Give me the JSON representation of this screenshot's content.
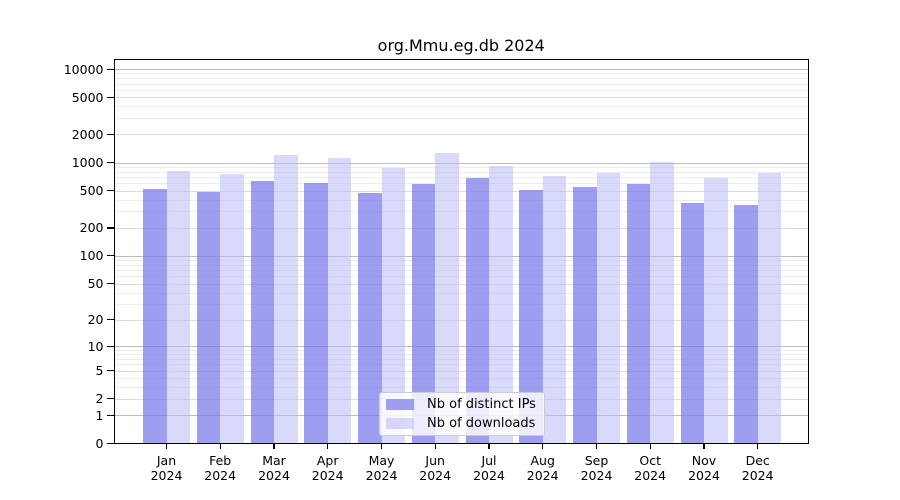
{
  "title": "org.Mmu.eg.db 2024",
  "chart_data": {
    "type": "bar",
    "title": "org.Mmu.eg.db 2024",
    "categories": [
      "Jan",
      "Feb",
      "Mar",
      "Apr",
      "May",
      "Jun",
      "Jul",
      "Aug",
      "Sep",
      "Oct",
      "Nov",
      "Dec"
    ],
    "x_year_label": "2024",
    "series": [
      {
        "name": "Nb of distinct IPs",
        "key": "distinct-ips",
        "color_hex": "#a3a3f1",
        "css_color": "rgba(120,120,235,0.72)",
        "values": [
          520,
          483,
          632,
          601,
          478,
          587,
          681,
          510,
          555,
          589,
          368,
          353
        ]
      },
      {
        "name": "Nb of downloads",
        "key": "downloads",
        "color_hex": "#d9d9fa",
        "css_color": "rgba(185,185,245,0.55)",
        "values": [
          815,
          756,
          1197,
          1112,
          871,
          1257,
          929,
          725,
          769,
          1005,
          690,
          770
        ]
      }
    ],
    "yscale": "log1p",
    "yticks": [
      0,
      1,
      2,
      5,
      10,
      20,
      50,
      100,
      200,
      500,
      1000,
      2000,
      5000,
      10000
    ],
    "ylim": [
      0,
      12800
    ],
    "grid": {
      "horizontal": "log-major-and-minor",
      "vertical": false
    },
    "legend_position": "lower-center"
  }
}
